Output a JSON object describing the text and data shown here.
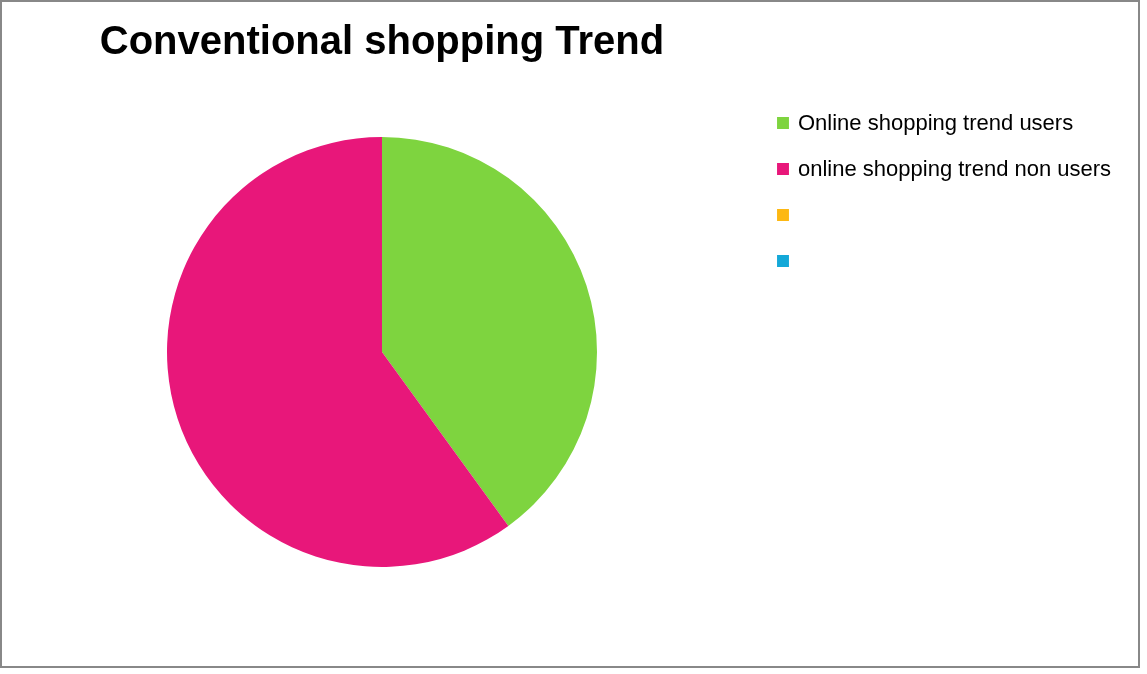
{
  "chart_data": {
    "type": "pie",
    "title": "Conventional shopping Trend",
    "categories": [
      "Online shopping trend users",
      "online shopping trend non users",
      null,
      null
    ],
    "values": [
      40,
      60,
      0,
      0
    ],
    "colors": [
      "#7ed43f",
      "#e8177a",
      "#fdb813",
      "#14a8d8"
    ],
    "legend": "right"
  }
}
